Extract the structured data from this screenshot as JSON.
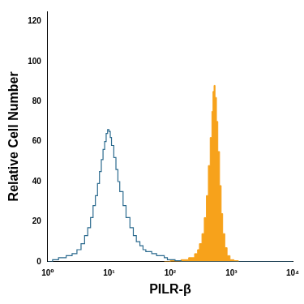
{
  "chart_data": {
    "type": "line",
    "x_label": "PILR-β",
    "y_label": "Relative Cell Number",
    "log": "x",
    "grid": false,
    "xlim": [
      1,
      10000
    ],
    "xticks": [
      {
        "value": 1,
        "label": "10⁰"
      },
      {
        "value": 10,
        "label": "10¹"
      },
      {
        "value": 100,
        "label": "10²"
      },
      {
        "value": 1000,
        "label": "10³"
      },
      {
        "value": 10000,
        "label": "10⁴"
      }
    ],
    "ylim": [
      0,
      125
    ],
    "yticks": [
      0,
      20,
      40,
      60,
      80,
      100,
      120
    ],
    "series": [
      {
        "type": "line",
        "color": "#2b6a8e",
        "line_style": "solid",
        "x": [
          1,
          1.2,
          1.5,
          2,
          2.5,
          3,
          3.5,
          4,
          4.5,
          5,
          5.5,
          6,
          6.5,
          7,
          7.5,
          8,
          8.5,
          9,
          9.5,
          10,
          10.5,
          11,
          12,
          13,
          14,
          15,
          17,
          19,
          22,
          25,
          28,
          32,
          36,
          40,
          50,
          60,
          70,
          80,
          90,
          100,
          120,
          150,
          200,
          1000,
          10000
        ],
        "values": [
          0,
          1,
          2,
          3,
          4,
          6,
          9,
          13,
          17,
          22,
          28,
          33,
          39,
          45,
          51,
          56,
          60,
          64,
          66,
          65,
          62,
          58,
          52,
          46,
          40,
          35,
          28,
          22,
          17,
          13,
          10,
          8,
          6,
          5,
          4,
          3,
          3,
          2,
          1,
          1,
          0.5,
          0,
          0,
          0,
          0
        ]
      },
      {
        "type": "area",
        "color": "#f7a21b",
        "line_style": "solid",
        "x": [
          80,
          100,
          150,
          200,
          250,
          280,
          300,
          330,
          360,
          390,
          420,
          450,
          480,
          500,
          520,
          540,
          570,
          600,
          640,
          680,
          720,
          780,
          850,
          950,
          1100,
          1300
        ],
        "values": [
          0,
          0.5,
          1,
          2,
          4,
          6,
          9,
          14,
          22,
          33,
          48,
          62,
          75,
          85,
          88,
          82,
          70,
          55,
          38,
          24,
          14,
          7,
          3,
          1,
          0.5,
          0
        ]
      }
    ]
  }
}
